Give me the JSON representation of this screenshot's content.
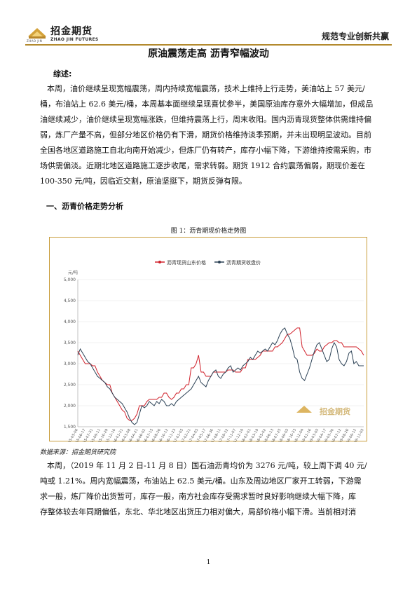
{
  "header": {
    "logo_name": "招金期货",
    "logo_sub_cn": "ZHAO JIN",
    "logo_sub_en": "ZHAO JIN FUTURES",
    "slogan": "规范专业创新共赢"
  },
  "title": "原油震荡走高 沥青窄幅波动",
  "summary": {
    "heading": "综述:",
    "lines": [
      "本周，油价继续呈现宽幅震荡，周内持续宽幅震荡，技术上维持上行走势，美油站上 57 美元/",
      "桶，布油站上 62.6 美元/桶，本周基本面继续呈现喜忧参半，美国原油库存意外大幅增加，但成品",
      "油继续减少，油价继续呈现宽幅涨跌，但维持震荡上行，周末收阳。国内沥青现货整体供需维持偏",
      "弱，炼厂产量不高，但部分地区价格仍有下滑，期货价格维持淡季预期，并未出现明显波动。目前",
      "全国各地区道路施工自北向南开始减少，但炼厂仍有转产，库存小幅下降，下游维持按需采购，市",
      "场供需偏淡。近期北地区道路施工逐步收尾，需求转弱。期货 1912 合约震荡偏弱，期现价差在",
      "100-350 元/吨，因临近交割，原油坚挺下，期货反弹有限。"
    ]
  },
  "section1": {
    "heading": "一、沥青价格走势分析",
    "figure_caption": "图 1：沥青期现价格走势图"
  },
  "chart_data": {
    "type": "line",
    "legend": [
      "沥青现货山东价格",
      "沥青期货收盘价"
    ],
    "legend_placement": "top-center",
    "ylabel": "元/吨",
    "ylim": [
      1500,
      5000
    ],
    "yticks": [
      "5,000",
      "4,500",
      "4,000",
      "3,500",
      "3,000",
      "2,500",
      "2,000",
      "1,500"
    ],
    "xticks": [
      "2015-05-06",
      "2015-06-17",
      "2015-07-31",
      "2015-09-11",
      "2015-10-29",
      "2015-12-10",
      "2016-01-21",
      "2016-03-08",
      "2016-04-21",
      "2016-06-02",
      "2016-07-15",
      "2016-08-26",
      "2016-10-12",
      "2016-11-23",
      "2017-01-05",
      "2017-02-21",
      "2017-04-05",
      "2017-05-17",
      "2017-06-30",
      "2017-08-11",
      "2017-09-22",
      "2017-11-07",
      "2017-12-19",
      "2018-02-01",
      "2018-03-19",
      "2018-05-02",
      "2018-06-13",
      "2018-07-25",
      "2018-09-05",
      "2018-10-23",
      "2018-12-04",
      "2019-01-16",
      "2019-03-05",
      "2019-04-17",
      "2019-05-30",
      "2019-07-12",
      "2019-08-26",
      "2019-09-12",
      "2019-11-05"
    ],
    "series": [
      {
        "name": "沥青现货山东价格",
        "color": "#d0202a",
        "values": [
          3300,
          3200,
          3100,
          3000,
          3000,
          3000,
          2950,
          2950,
          2800,
          2700,
          2600,
          2550,
          2500,
          2500,
          2300,
          2200,
          2100,
          2000,
          1900,
          1850,
          1700,
          1650,
          1650,
          1700,
          1800,
          2000,
          2000,
          2000,
          2100,
          2150,
          2150,
          2150,
          2150,
          2200,
          2200,
          2300,
          2300,
          2200,
          2150,
          2200,
          2300,
          2300,
          2400,
          2400,
          2500,
          2500,
          2900,
          2900,
          3000,
          3200,
          2800,
          2800,
          2700,
          2700,
          2700,
          2800,
          2800,
          2800,
          2800,
          2800,
          2800,
          2850,
          2850,
          2850,
          2800,
          2800,
          2800,
          2900,
          2900,
          3100,
          3100,
          3100,
          3100,
          3150,
          3200,
          3300,
          3300,
          3300,
          3300,
          3300,
          3400,
          3400,
          3450,
          3500,
          3600,
          3700,
          3700,
          3750,
          3800,
          3850,
          3850,
          3400,
          3300,
          3200,
          3200,
          3200,
          3250,
          3350,
          3300,
          3300,
          3400,
          3450,
          3500,
          3500,
          3550,
          3550,
          3500,
          3500,
          3400,
          3400,
          3400,
          3400,
          3400,
          3400,
          3350,
          3300,
          3200
        ]
      },
      {
        "name": "沥青期货收盘价",
        "color": "#2a4054",
        "values": [
          3200,
          3350,
          3250,
          3150,
          3050,
          3000,
          2900,
          2800,
          2700,
          2650,
          2600,
          2550,
          2450,
          2400,
          2300,
          2200,
          2150,
          2100,
          2050,
          1950,
          1850,
          1700,
          1600,
          1550,
          1600,
          1800,
          2000,
          1950,
          2000,
          2100,
          2050,
          2000,
          2100,
          2050,
          2150,
          2100,
          2000,
          2000,
          2050,
          2000,
          2100,
          2150,
          2200,
          2250,
          2300,
          2350,
          2400,
          2500,
          2600,
          2700,
          2550,
          2500,
          2450,
          2600,
          2700,
          2800,
          2850,
          2700,
          2650,
          2750,
          2800,
          2900,
          2950,
          2800,
          2850,
          2900,
          2850,
          2950,
          3000,
          3050,
          3150,
          3100,
          3200,
          3300,
          3250,
          3300,
          3350,
          3300,
          3400,
          3500,
          3450,
          3550,
          3700,
          3800,
          3850,
          3700,
          3600,
          3400,
          3150,
          3100,
          2800,
          2650,
          2600,
          2750,
          2900,
          3100,
          3300,
          3450,
          3500,
          3350,
          3200,
          3050,
          3100,
          3350,
          3500,
          3400,
          3100,
          3000,
          2950,
          3050,
          3250,
          3300,
          3000,
          3050,
          2950,
          2950,
          2950
        ]
      }
    ]
  },
  "watermark": "招金期货",
  "source": "数据来源：招金期货研究院",
  "para2": {
    "lines": [
      "本周，（2019 年 11 月 2 日-11 月 8 日）国石油沥青均价为 3276 元/吨，较上周下调 40 元/",
      "吨或 1.21%。周内宽幅震荡，布油站上 62.5 美元/桶。山东及周边地区厂家开工转弱，下游需",
      "求一般，炼厂降价出货暂可，库存一般，南方社会库存受需求暂时良好影响继续大幅下降，库",
      "存整体较去年同期偏低，东北、华北地区出货压力相对偏大，局部价格小幅下滑。当前相对消"
    ]
  },
  "page_number": "1"
}
